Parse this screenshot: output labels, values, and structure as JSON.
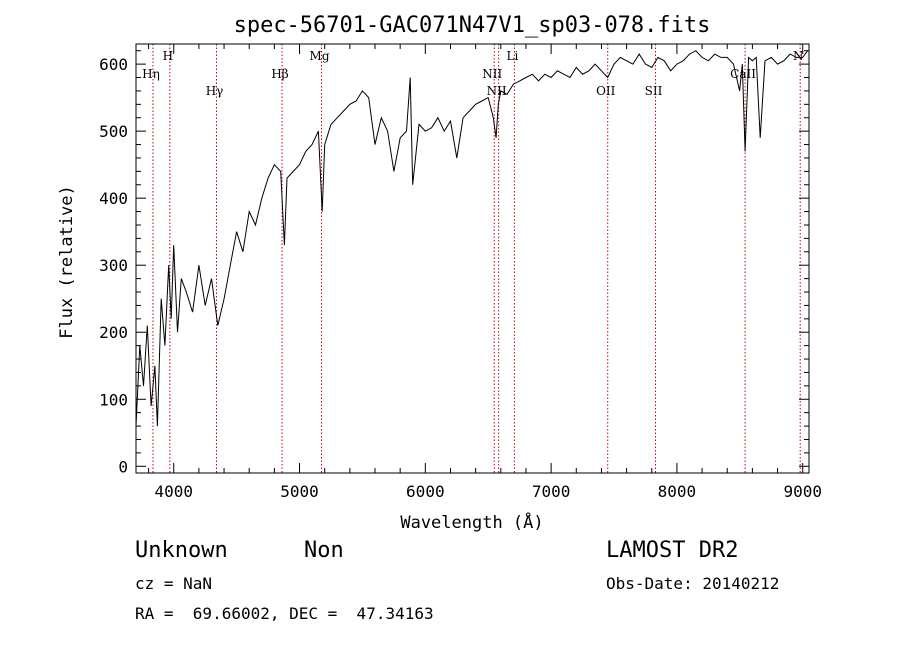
{
  "chart_data": {
    "type": "line",
    "title": "spec-56701-GAC071N47V1_sp03-078.fits",
    "xlabel": "Wavelength (Å)",
    "ylabel": "Flux (relative)",
    "xlim": [
      3700,
      9050
    ],
    "ylim": [
      -10,
      630
    ],
    "x_ticks": [
      4000,
      5000,
      6000,
      7000,
      8000,
      9000
    ],
    "y_ticks": [
      0,
      100,
      200,
      300,
      400,
      500,
      600
    ],
    "grid": false,
    "line_color": "#000000",
    "marker_color": "#cc0000",
    "series": [
      {
        "x": [
          3700,
          3730,
          3760,
          3790,
          3820,
          3850,
          3870,
          3900,
          3930,
          3960,
          3980,
          4000,
          4030,
          4060,
          4100,
          4150,
          4200,
          4250,
          4300,
          4350,
          4400,
          4450,
          4500,
          4550,
          4600,
          4650,
          4700,
          4750,
          4800,
          4850,
          4880,
          4900,
          4950,
          5000,
          5050,
          5100,
          5150,
          5180,
          5200,
          5250,
          5300,
          5350,
          5400,
          5450,
          5500,
          5550,
          5600,
          5650,
          5700,
          5750,
          5800,
          5850,
          5880,
          5900,
          5950,
          6000,
          6050,
          6100,
          6150,
          6200,
          6250,
          6300,
          6350,
          6400,
          6450,
          6500,
          6540,
          6563,
          6580,
          6600,
          6650,
          6700,
          6750,
          6800,
          6850,
          6900,
          6950,
          7000,
          7050,
          7100,
          7150,
          7200,
          7250,
          7300,
          7350,
          7400,
          7450,
          7500,
          7550,
          7600,
          7650,
          7700,
          7750,
          7800,
          7850,
          7900,
          7950,
          8000,
          8050,
          8100,
          8150,
          8200,
          8250,
          8300,
          8350,
          8400,
          8450,
          8498,
          8520,
          8542,
          8570,
          8600,
          8630,
          8662,
          8700,
          8750,
          8800,
          8850,
          8900,
          8950,
          9000,
          9040
        ],
        "y": [
          60,
          180,
          120,
          210,
          90,
          150,
          60,
          250,
          180,
          300,
          220,
          330,
          200,
          280,
          260,
          230,
          300,
          240,
          280,
          210,
          250,
          300,
          350,
          320,
          380,
          360,
          400,
          430,
          450,
          440,
          330,
          430,
          440,
          450,
          470,
          480,
          500,
          380,
          480,
          510,
          520,
          530,
          540,
          545,
          560,
          550,
          480,
          520,
          500,
          440,
          490,
          500,
          580,
          420,
          510,
          500,
          505,
          520,
          500,
          515,
          460,
          520,
          530,
          540,
          545,
          550,
          520,
          490,
          540,
          560,
          555,
          570,
          575,
          580,
          585,
          575,
          585,
          580,
          590,
          585,
          580,
          595,
          585,
          590,
          600,
          590,
          580,
          600,
          610,
          605,
          600,
          615,
          600,
          595,
          610,
          605,
          590,
          600,
          605,
          615,
          620,
          610,
          605,
          615,
          610,
          610,
          600,
          560,
          600,
          470,
          610,
          605,
          610,
          490,
          605,
          610,
          600,
          605,
          615,
          610,
          610,
          620
        ]
      }
    ],
    "line_markers": [
      {
        "label": "Hη",
        "x": 3835,
        "row": 1
      },
      {
        "label": "H",
        "x": 3969,
        "row": 0
      },
      {
        "label": "Hγ",
        "x": 4340,
        "row": 2
      },
      {
        "label": "Hβ",
        "x": 4861,
        "row": 1
      },
      {
        "label": "Mg",
        "x": 5175,
        "row": 0
      },
      {
        "label": "NII",
        "x": 6548,
        "row": 1
      },
      {
        "label": "Li",
        "x": 6708,
        "row": 0
      },
      {
        "label": "NII",
        "x": 6583,
        "row": 2
      },
      {
        "label": "OII",
        "x": 7450,
        "row": 2
      },
      {
        "label": "SII",
        "x": 7830,
        "row": 2
      },
      {
        "label": "CaII",
        "x": 8542,
        "row": 1
      },
      {
        "label": "N",
        "x": 8980,
        "row": 0
      }
    ]
  },
  "info": {
    "obj_class": "Unknown",
    "obj_subclass": "Non",
    "survey": "LAMOST DR2",
    "cz": "cz = NaN",
    "obs_date": "Obs-Date: 20140212",
    "coords": "RA =  69.66002, DEC =  47.34163"
  }
}
